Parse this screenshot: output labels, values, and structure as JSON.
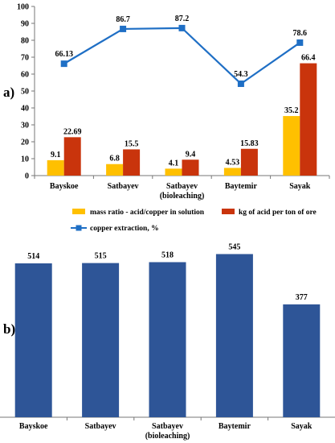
{
  "chart_data": [
    {
      "type": "bar",
      "panel_label": "a)",
      "categories": [
        [
          "Bayskoe"
        ],
        [
          "Satbayev"
        ],
        [
          "Satbayev",
          "(bioleaching)"
        ],
        [
          "Baytemir"
        ],
        [
          "Sayak"
        ]
      ],
      "series": [
        {
          "name": "mass ratio - acid/copper in solution",
          "type": "bar",
          "color": "#FFC000",
          "values": [
            9.1,
            6.8,
            4.1,
            4.53,
            35.2
          ],
          "labels": [
            "9.1",
            "6.8",
            "4.1",
            "4.53",
            "35.2"
          ]
        },
        {
          "name": "kg of acid per ton of ore",
          "type": "bar",
          "color": "#C9340C",
          "values": [
            22.69,
            15.5,
            9.4,
            15.83,
            66.4
          ],
          "labels": [
            "22.69",
            "15.5",
            "9.4",
            "15.83",
            "66.4"
          ]
        },
        {
          "name": "copper extraction, %",
          "type": "line",
          "color": "#1F6FC5",
          "values": [
            66.13,
            86.7,
            87.2,
            54.3,
            78.6
          ],
          "labels": [
            "66.13",
            "86.7",
            "87.2",
            "54.3",
            "78.6"
          ]
        }
      ],
      "ylim": [
        0,
        100
      ],
      "yticks": [
        "0",
        "10",
        "20",
        "30",
        "40",
        "50",
        "60",
        "70",
        "80",
        "90",
        "100"
      ],
      "legend_position": "bottom"
    },
    {
      "type": "bar",
      "panel_label": "b)",
      "categories": [
        [
          "Bayskoe"
        ],
        [
          "Satbayev"
        ],
        [
          "Satbayev",
          "(bioleaching)"
        ],
        [
          "Baytemir"
        ],
        [
          "Sayak"
        ]
      ],
      "values": [
        514,
        515,
        518,
        545,
        377
      ],
      "labels": [
        "514",
        "515",
        "518",
        "545",
        "377"
      ],
      "color": "#2E5597"
    }
  ]
}
